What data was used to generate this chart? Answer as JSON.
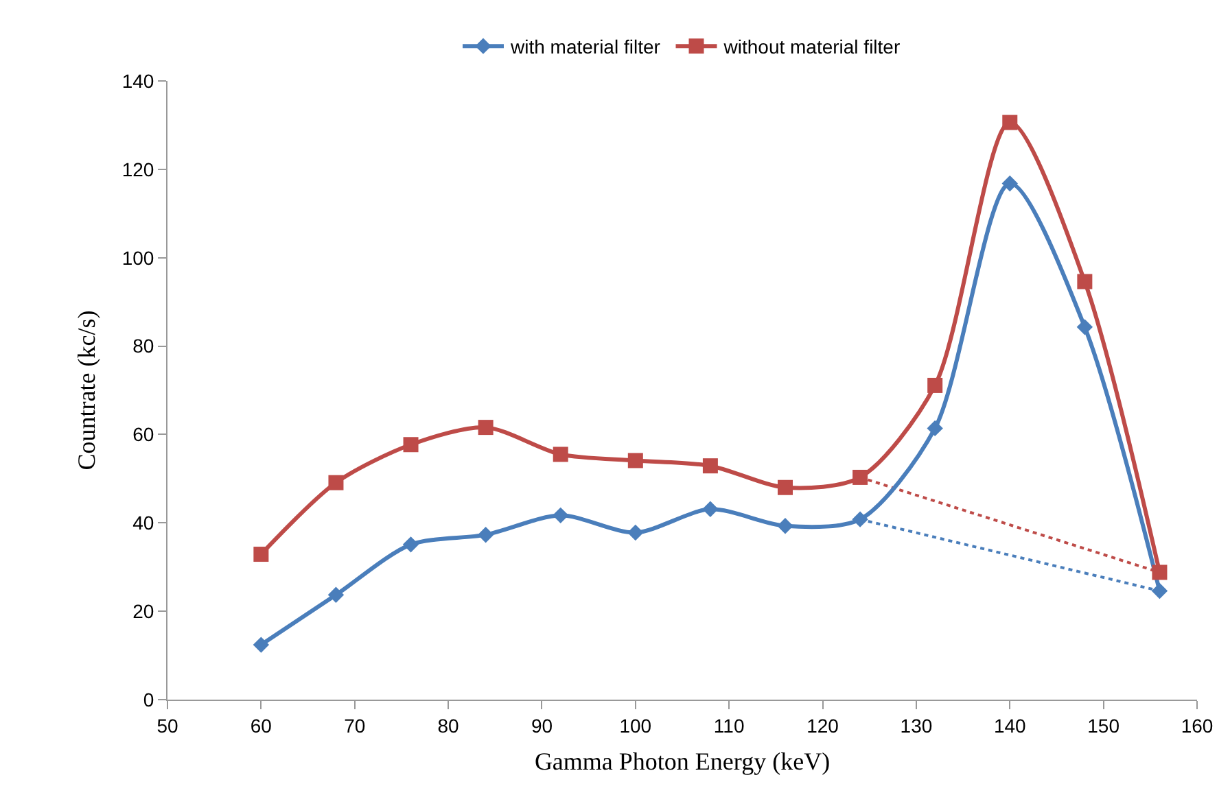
{
  "chart_data": {
    "type": "line",
    "xlabel": "Gamma Photon Energy (keV)",
    "ylabel": "Countrate (kc/s)",
    "x": [
      60,
      68,
      76,
      84,
      92,
      100,
      108,
      116,
      124,
      132,
      140,
      148,
      156
    ],
    "series": [
      {
        "name": "with material filter",
        "color": "#4a7ebb",
        "marker": "diamond",
        "line_style": "solid",
        "values": [
          12.4,
          23.7,
          35.1,
          37.3,
          41.7,
          37.8,
          43.1,
          39.3,
          40.8,
          61.4,
          116.8,
          84.3,
          24.6
        ]
      },
      {
        "name": "without material filter",
        "color": "#be4b48",
        "marker": "square",
        "line_style": "solid",
        "values": [
          32.9,
          49.1,
          57.7,
          61.6,
          55.5,
          54.1,
          52.9,
          48.0,
          50.3,
          71.1,
          130.6,
          94.6,
          28.8
        ]
      },
      {
        "color": "#4a7ebb",
        "marker": "none",
        "line_style": "dotted",
        "values": [
          null,
          null,
          null,
          null,
          null,
          null,
          null,
          null,
          40.8,
          null,
          null,
          null,
          24.6
        ]
      },
      {
        "color": "#be4b48",
        "marker": "none",
        "line_style": "dotted",
        "values": [
          null,
          null,
          null,
          null,
          null,
          null,
          null,
          null,
          50.3,
          null,
          null,
          null,
          28.8
        ]
      }
    ],
    "xlim": [
      50,
      160
    ],
    "xticks": [
      50,
      60,
      70,
      80,
      90,
      100,
      110,
      120,
      130,
      140,
      150,
      160
    ],
    "ylim": [
      0,
      140
    ],
    "yticks": [
      0,
      20,
      40,
      60,
      80,
      100,
      120,
      140
    ],
    "grid": false,
    "legend": "top"
  }
}
